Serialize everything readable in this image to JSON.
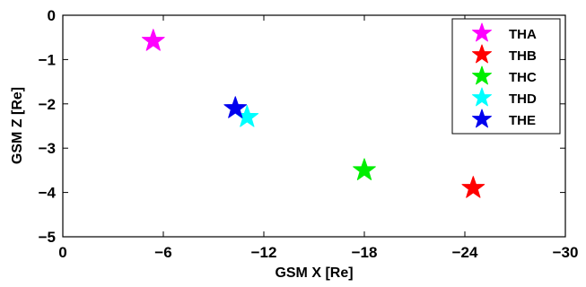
{
  "chart_data": {
    "type": "scatter",
    "xlabel": "GSM X [Re]",
    "ylabel": "GSM Z [Re]",
    "xlim": [
      0,
      -30
    ],
    "ylim": [
      -5,
      0
    ],
    "xticks": [
      0,
      -6,
      -12,
      -18,
      -24,
      -30
    ],
    "yticks": [
      0,
      -1,
      -2,
      -3,
      -4,
      -5
    ],
    "xtick_labels": [
      "0",
      "−6",
      "−12",
      "−18",
      "−24",
      "−30"
    ],
    "ytick_labels": [
      "0",
      "−1",
      "−2",
      "−3",
      "−4",
      "−5"
    ],
    "marker": "star",
    "legend_position": "top-right",
    "series": [
      {
        "name": "THA",
        "color": "#ff00ff",
        "x": -5.4,
        "y": -0.58
      },
      {
        "name": "THB",
        "color": "#ff0000",
        "x": -24.5,
        "y": -3.9
      },
      {
        "name": "THC",
        "color": "#00ee00",
        "x": -18.0,
        "y": -3.5
      },
      {
        "name": "THD",
        "color": "#00ffff",
        "x": -11.0,
        "y": -2.3
      },
      {
        "name": "THE",
        "color": "#0000ee",
        "x": -10.3,
        "y": -2.1
      }
    ]
  }
}
